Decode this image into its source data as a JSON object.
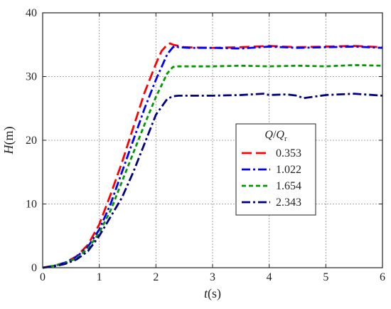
{
  "chart_data": {
    "type": "line",
    "title": "",
    "xlabel": {
      "var": "t",
      "unit": "(s)"
    },
    "ylabel": {
      "var": "H",
      "unit": "(m)"
    },
    "xlim": [
      0,
      6
    ],
    "ylim": [
      0,
      40
    ],
    "xticks": [
      "0",
      "1",
      "2",
      "3",
      "4",
      "5",
      "6"
    ],
    "yticks": [
      "0",
      "10",
      "20",
      "30",
      "40"
    ],
    "grid": true,
    "legend": {
      "placement": "center-right",
      "title_var": "Q",
      "title_sub_var": "Q",
      "title_sub": "r"
    },
    "series": [
      {
        "name": "0.353",
        "color": "#ff0000",
        "dash": "long-dash",
        "x": [
          0,
          0.2,
          0.4,
          0.6,
          0.8,
          1.0,
          1.2,
          1.4,
          1.6,
          1.8,
          2.0,
          2.1,
          2.2,
          2.25,
          2.3,
          2.5,
          3.0,
          3.5,
          4.0,
          4.5,
          5.0,
          5.5,
          6.0
        ],
        "y": [
          0,
          0.3,
          0.8,
          1.8,
          3.6,
          6.8,
          11.5,
          16.5,
          22.0,
          27.5,
          32.0,
          34.0,
          35.0,
          35.2,
          35.0,
          34.6,
          34.5,
          34.6,
          34.8,
          34.6,
          34.7,
          34.8,
          34.6
        ]
      },
      {
        "name": "1.022",
        "color": "#0000ff",
        "dash": "dash-dot",
        "x": [
          0,
          0.2,
          0.4,
          0.6,
          0.8,
          1.0,
          1.2,
          1.4,
          1.6,
          1.8,
          2.0,
          2.2,
          2.3,
          2.35,
          2.4,
          2.6,
          3.0,
          3.5,
          4.0,
          4.5,
          5.0,
          5.5,
          6.0
        ],
        "y": [
          0,
          0.3,
          0.8,
          1.7,
          3.3,
          6.0,
          10.0,
          15.0,
          20.0,
          25.0,
          29.5,
          33.5,
          34.6,
          34.8,
          34.6,
          34.5,
          34.5,
          34.4,
          34.7,
          34.5,
          34.6,
          34.7,
          34.5
        ]
      },
      {
        "name": "1.654",
        "color": "#009900",
        "dash": "short-dash",
        "x": [
          0,
          0.2,
          0.4,
          0.6,
          0.8,
          1.0,
          1.2,
          1.4,
          1.6,
          1.8,
          2.0,
          2.2,
          2.3,
          2.4,
          2.6,
          3.0,
          3.5,
          4.0,
          4.5,
          5.0,
          5.5,
          6.0
        ],
        "y": [
          0,
          0.3,
          0.7,
          1.5,
          3.0,
          5.5,
          9.0,
          13.5,
          18.0,
          22.5,
          26.8,
          30.5,
          31.5,
          31.6,
          31.6,
          31.6,
          31.7,
          31.6,
          31.7,
          31.6,
          31.8,
          31.7
        ]
      },
      {
        "name": "2.343",
        "color": "#000080",
        "dash": "dash-dot",
        "x": [
          0,
          0.2,
          0.4,
          0.6,
          0.8,
          1.0,
          1.2,
          1.4,
          1.6,
          1.8,
          2.0,
          2.2,
          2.3,
          2.4,
          2.6,
          3.0,
          3.5,
          3.9,
          4.0,
          4.3,
          4.5,
          4.6,
          5.0,
          5.5,
          6.0
        ],
        "y": [
          0,
          0.2,
          0.6,
          1.3,
          2.6,
          5.0,
          8.0,
          11.0,
          15.0,
          19.5,
          24.0,
          26.5,
          26.9,
          27.0,
          27.0,
          27.0,
          27.1,
          27.3,
          27.1,
          27.2,
          27.0,
          26.6,
          27.1,
          27.3,
          27.0
        ]
      }
    ]
  }
}
